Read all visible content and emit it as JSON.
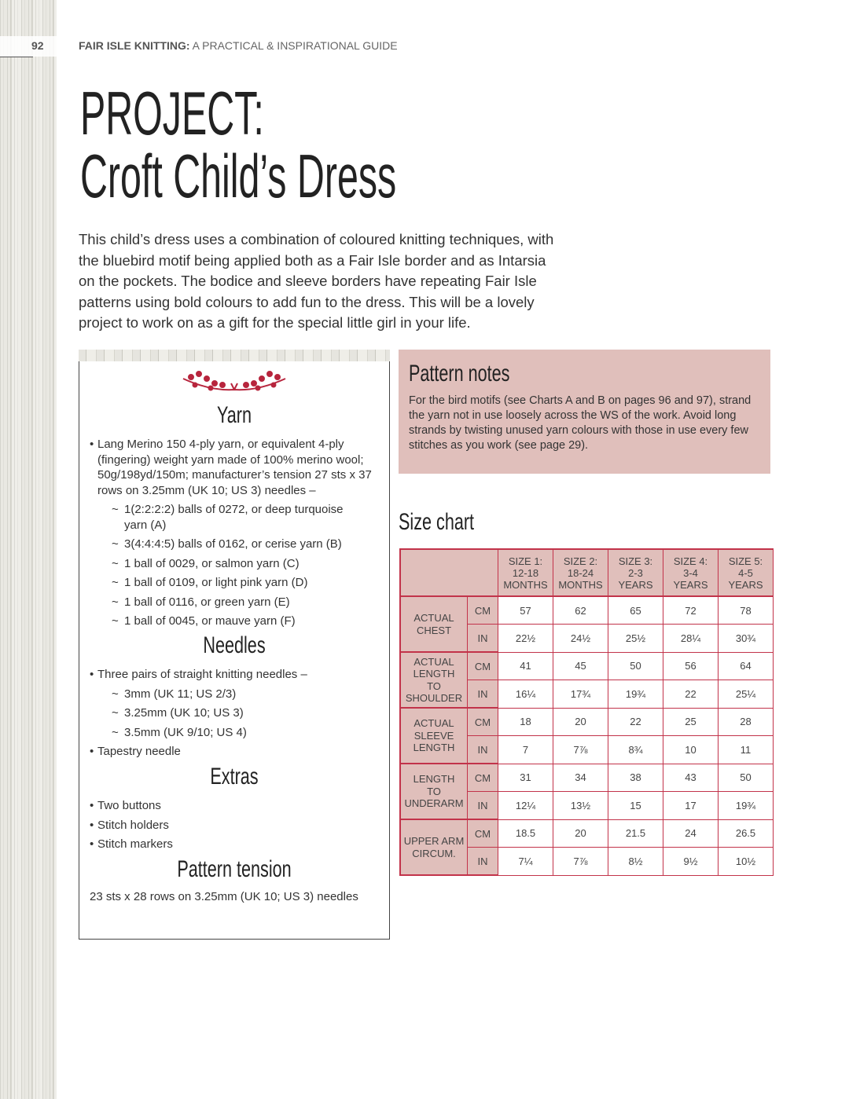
{
  "header": {
    "page_number": "92",
    "book_title_bold": "FAIR ISLE KNITTING:",
    "book_title_rest": " A PRACTICAL & INSPIRATIONAL GUIDE"
  },
  "title": {
    "line1": "PROJECT:",
    "line2": "Croft Child’s Dress"
  },
  "intro": "This child’s dress uses a combination of coloured knitting techniques, with the bluebird motif being applied both as a Fair Isle border and as Intarsia on the pockets. The bodice and sleeve borders have repeating Fair Isle patterns using bold colours to add fun to the dress. This will be a lovely project to work on as a gift for the special little girl in your life.",
  "materials": {
    "ornament_icon": "leaf-vine-ornament",
    "yarn": {
      "heading": "Yarn",
      "main": "Lang Merino 150 4-ply yarn, or equivalent 4-ply (fingering) weight yarn made of 100% merino wool; 50g/198yd/150m; manufacturer’s tension 27 sts x 37 rows on 3.25mm (UK 10; US 3) needles –",
      "sub": [
        "1(2:2:2:2) balls of 0272, or deep turquoise yarn (A)",
        "3(4:4:4:5) balls of 0162, or cerise yarn (B)",
        "1 ball of 0029, or salmon yarn (C)",
        "1 ball of 0109, or light pink yarn (D)",
        "1 ball of 0116, or green yarn (E)",
        "1 ball of 0045, or mauve yarn (F)"
      ]
    },
    "needles": {
      "heading": "Needles",
      "main": "Three pairs of straight knitting needles –",
      "sub": [
        "3mm (UK 11; US 2/3)",
        "3.25mm (UK 10; US 3)",
        "3.5mm (UK 9/10; US 4)"
      ],
      "extra": "Tapestry needle"
    },
    "extras": {
      "heading": "Extras",
      "items": [
        "Two buttons",
        "Stitch holders",
        "Stitch markers"
      ]
    },
    "tension": {
      "heading": "Pattern tension",
      "text": "23 sts x 28 rows on 3.25mm (UK 10; US 3) needles"
    }
  },
  "pattern_notes": {
    "heading": "Pattern notes",
    "text": "For the bird motifs (see Charts A and B on pages 96 and 97), strand the yarn not in use loosely across the WS of the work. Avoid long strands by twisting unused yarn colours with those in use every few stitches as you work (see page 29)."
  },
  "size_chart": {
    "heading": "Size chart",
    "columns": [
      [
        "SIZE 1:",
        "12-18",
        "MONTHS"
      ],
      [
        "SIZE 2:",
        "18-24",
        "MONTHS"
      ],
      [
        "SIZE 3:",
        "2-3",
        "YEARS"
      ],
      [
        "SIZE 4:",
        "3-4",
        "YEARS"
      ],
      [
        "SIZE 5:",
        "4-5",
        "YEARS"
      ]
    ],
    "rows": [
      {
        "label": [
          "ACTUAL",
          "CHEST"
        ],
        "cm": [
          "57",
          "62",
          "65",
          "72",
          "78"
        ],
        "in": [
          "22½",
          "24½",
          "25½",
          "28¼",
          "30¾"
        ]
      },
      {
        "label": [
          "ACTUAL",
          "LENGTH",
          "TO",
          "SHOULDER"
        ],
        "cm": [
          "41",
          "45",
          "50",
          "56",
          "64"
        ],
        "in": [
          "16¼",
          "17¾",
          "19¾",
          "22",
          "25¼"
        ]
      },
      {
        "label": [
          "ACTUAL",
          "SLEEVE",
          "LENGTH"
        ],
        "cm": [
          "18",
          "20",
          "22",
          "25",
          "28"
        ],
        "in": [
          "7",
          "7⅞",
          "8¾",
          "10",
          "11"
        ]
      },
      {
        "label": [
          "LENGTH",
          "TO",
          "UNDERARM"
        ],
        "cm": [
          "31",
          "34",
          "38",
          "43",
          "50"
        ],
        "in": [
          "12¼",
          "13½",
          "15",
          "17",
          "19¾"
        ]
      },
      {
        "label": [
          "UPPER ARM",
          "CIRCUM."
        ],
        "cm": [
          "18.5",
          "20",
          "21.5",
          "24",
          "26.5"
        ],
        "in": [
          "7¼",
          "7⅞",
          "8½",
          "9½",
          "10½"
        ]
      }
    ],
    "unit_cm": "CM",
    "unit_in": "IN"
  },
  "colors": {
    "accent": "#c2334a",
    "pink_fill": "#e0bfbb"
  }
}
